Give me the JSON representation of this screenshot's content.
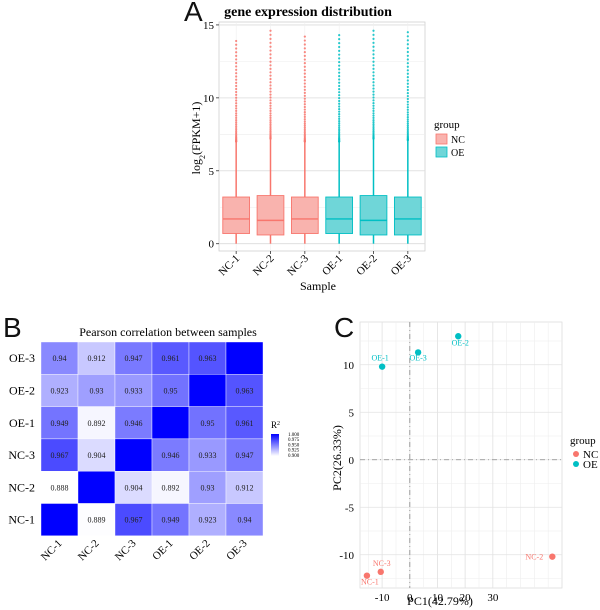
{
  "panels": {
    "a": {
      "letter": "A"
    },
    "b": {
      "letter": "B"
    },
    "c": {
      "letter": "C"
    }
  },
  "chart_data": [
    {
      "type": "box",
      "title": "gene expression distribution",
      "xlabel": "Sample",
      "ylabel": "log2(FPKM+1)",
      "ylabel_parts": {
        "main": "log",
        "sub": "2",
        "rest": "(FPKM+1)"
      },
      "ylim": [
        -0.5,
        15.2
      ],
      "yticks": [
        0,
        5,
        10,
        15
      ],
      "grid": true,
      "legend": {
        "title": "group",
        "position": "right",
        "entries": [
          "NC",
          "OE"
        ]
      },
      "colors": {
        "NC": "#f8766d",
        "OE": "#00bfc4",
        "NC_fill": "#f9b3ae",
        "OE_fill": "#6fd6d8"
      },
      "categories": [
        "NC-1",
        "NC-2",
        "NC-3",
        "OE-1",
        "OE-2",
        "OE-3"
      ],
      "groups": [
        "NC",
        "NC",
        "NC",
        "OE",
        "OE",
        "OE"
      ],
      "series": [
        {
          "q1": 0.7,
          "median": 1.7,
          "q3": 3.2,
          "whisker_low": 0,
          "whisker_high": 7.0,
          "outlier_max": 13.9
        },
        {
          "q1": 0.6,
          "median": 1.6,
          "q3": 3.3,
          "whisker_low": 0,
          "whisker_high": 7.2,
          "outlier_max": 14.6
        },
        {
          "q1": 0.7,
          "median": 1.7,
          "q3": 3.2,
          "whisker_low": 0,
          "whisker_high": 7.0,
          "outlier_max": 14.2
        },
        {
          "q1": 0.7,
          "median": 1.7,
          "q3": 3.2,
          "whisker_low": 0,
          "whisker_high": 7.0,
          "outlier_max": 14.3
        },
        {
          "q1": 0.6,
          "median": 1.6,
          "q3": 3.3,
          "whisker_low": 0,
          "whisker_high": 7.2,
          "outlier_max": 14.6
        },
        {
          "q1": 0.6,
          "median": 1.7,
          "q3": 3.2,
          "whisker_low": 0,
          "whisker_high": 7.1,
          "outlier_max": 14.5
        }
      ]
    },
    {
      "type": "heatmap",
      "title": "Pearson correlation between samples",
      "rows": [
        "OE-3",
        "OE-2",
        "OE-1",
        "NC-3",
        "NC-2",
        "NC-1"
      ],
      "columns": [
        "NC-1",
        "NC-2",
        "NC-3",
        "OE-1",
        "OE-2",
        "OE-3"
      ],
      "values": [
        [
          "0.94",
          "0.912",
          "0.947",
          "0.961",
          "0.963",
          "1"
        ],
        [
          "0.923",
          "0.93",
          "0.933",
          "0.95",
          "1",
          "0.963"
        ],
        [
          "0.949",
          "0.892",
          "0.946",
          "1",
          "0.95",
          "0.961"
        ],
        [
          "0.967",
          "0.904",
          "1",
          "0.946",
          "0.933",
          "0.947"
        ],
        [
          "0.888",
          "1",
          "0.904",
          "0.892",
          "0.93",
          "0.912"
        ],
        [
          "1",
          "0.889",
          "0.967",
          "0.949",
          "0.923",
          "0.94"
        ]
      ],
      "show_diagonal_label": false,
      "legend": {
        "title": "R²",
        "title_parts": {
          "main": "R",
          "sup": "2"
        },
        "position": "right",
        "ticks": [
          "1.000",
          "0.975",
          "0.950",
          "0.925",
          "0.900"
        ],
        "range": [
          0.888,
          1.0
        ]
      },
      "colors": {
        "low": "#ffffff",
        "high": "#0000ff"
      }
    },
    {
      "type": "scatter",
      "xlabel": "PC1(42.79%)",
      "ylabel": "PC2(26.33%)",
      "xlim": [
        -18,
        55
      ],
      "ylim": [
        -13.5,
        14.5
      ],
      "xticks": [
        -10,
        0,
        10,
        20,
        30
      ],
      "yticks": [
        -10,
        -5,
        0,
        5,
        10
      ],
      "grid": true,
      "reference_lines": {
        "x": 0,
        "y": 0
      },
      "legend": {
        "title": "group",
        "position": "right",
        "entries": [
          "NC",
          "OE"
        ]
      },
      "colors": {
        "NC": "#f8766d",
        "OE": "#00bfc4"
      },
      "points": [
        {
          "label": "NC-1",
          "group": "NC",
          "x": -15.5,
          "y": -12.2
        },
        {
          "label": "NC-2",
          "group": "NC",
          "x": 51.5,
          "y": -10.2
        },
        {
          "label": "NC-3",
          "group": "NC",
          "x": -10.5,
          "y": -11.8
        },
        {
          "label": "OE-1",
          "group": "OE",
          "x": -10.0,
          "y": 9.8
        },
        {
          "label": "OE-2",
          "group": "OE",
          "x": 17.5,
          "y": 13.0
        },
        {
          "label": "OE-3",
          "group": "OE",
          "x": 3.0,
          "y": 11.3
        }
      ]
    }
  ]
}
